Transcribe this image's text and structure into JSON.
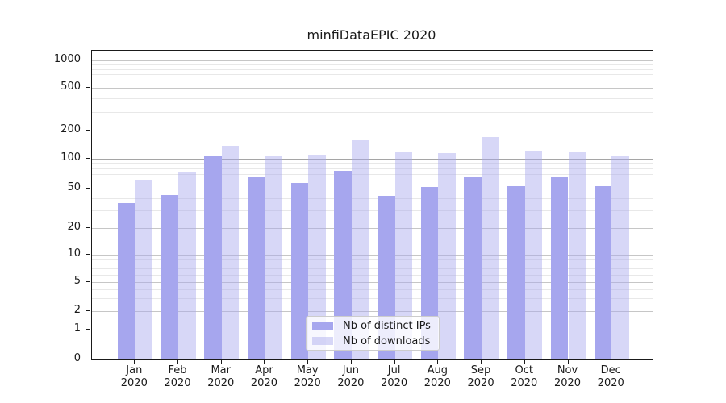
{
  "chart": {
    "accent_bar_color": "#a6a6ee",
    "light_bar_color": "rgba(166,166,238,0.45)",
    "grid_major_color": "#c6c6c6",
    "grid_minor_color": "#e8e8e8"
  },
  "chart_data": {
    "type": "bar",
    "title": "minfiDataEPIC 2020",
    "categories": [
      "Jan",
      "Feb",
      "Mar",
      "Apr",
      "May",
      "Jun",
      "Jul",
      "Aug",
      "Sep",
      "Oct",
      "Nov",
      "Dec"
    ],
    "category_year": "2020",
    "series": [
      {
        "name": "Nb of distinct IPs",
        "color": "#a6a6ee",
        "values": [
          36,
          43,
          107,
          66,
          57,
          75,
          42,
          52,
          66,
          53,
          65,
          53
        ]
      },
      {
        "name": "Nb of downloads",
        "color": "rgba(166,166,238,0.45)",
        "values": [
          61,
          73,
          137,
          106,
          109,
          156,
          116,
          114,
          172,
          122,
          119,
          108
        ]
      }
    ],
    "yscale": "symlog",
    "ylim": [
      0,
      1000
    ],
    "y_major_ticks": [
      0,
      1,
      2,
      5,
      10,
      20,
      50,
      100,
      200,
      500,
      1000
    ],
    "y_minor_ticks": [
      3,
      4,
      6,
      7,
      8,
      9,
      30,
      40,
      60,
      70,
      80,
      90,
      300,
      400,
      600,
      700,
      800,
      900
    ],
    "grid": true,
    "legend_position": "lower center"
  }
}
